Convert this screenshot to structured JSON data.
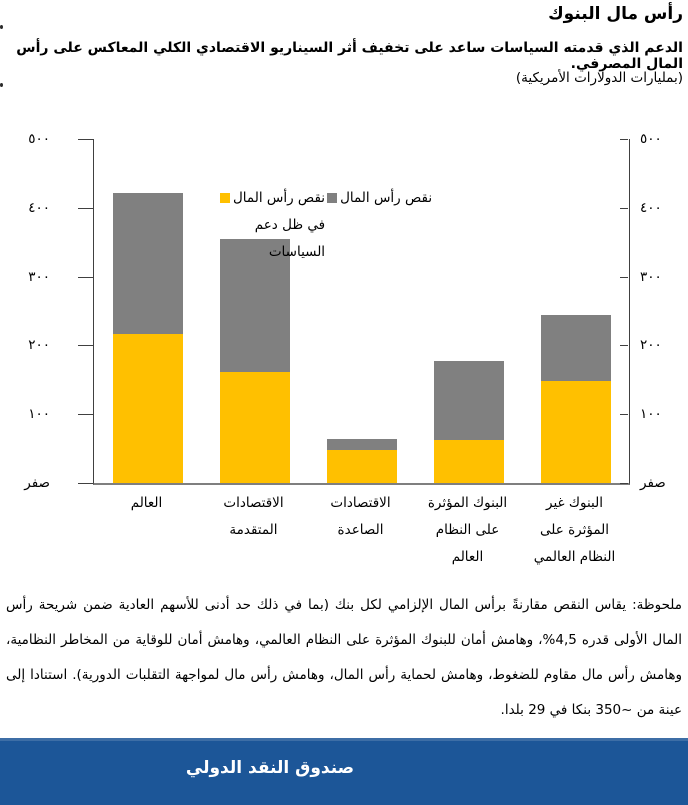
{
  "header": {
    "title": "رأس مال البنوك",
    "subtitle": "الدعم الذي قدمته السياسات ساعد على تخفيف أثر السيناريو الاقتصادي الكلي المعاكس على رأس المال المصرفي.",
    "units": "(بمليارات الدولارات الأمريكية)"
  },
  "chart_data": {
    "type": "bar",
    "stacked": true,
    "direction": "rtl",
    "title": "رأس مال البنوك",
    "ylabel": "بمليارات الدولارات الأمريكية",
    "ylim": [
      0,
      500
    ],
    "grid": false,
    "dual_axis_labels": true,
    "legend_position": "inside-top-center",
    "categories": [
      "العالم",
      "الاقتصادات المتقدمة",
      "الاقتصادات الصاعدة",
      "البنوك المؤثرة على النظام العالم",
      "البنوك غير المؤثرة على النظام العالمي"
    ],
    "category_lines": [
      [
        "العالم"
      ],
      [
        "الاقتصادات",
        "المتقدمة"
      ],
      [
        "الاقتصادات",
        "الصاعدة"
      ],
      [
        "البنوك المؤثرة",
        "على النظام",
        "العالم"
      ],
      [
        "البنوك غير",
        "المؤثرة على",
        "النظام العالمي"
      ]
    ],
    "series": [
      {
        "name": "نقص رأس المال في ظل دعم السياسات",
        "color": "#FFC000",
        "values": [
          217,
          161,
          48,
          63,
          148
        ]
      },
      {
        "name": "نقص رأس المال",
        "color": "#808080",
        "values": [
          205,
          193,
          16,
          115,
          96
        ]
      }
    ],
    "totals": [
      422,
      354,
      64,
      178,
      244
    ],
    "yticks": [
      {
        "value": 0,
        "label": "صفر"
      },
      {
        "value": 100,
        "label": "١٠٠"
      },
      {
        "value": 200,
        "label": "٢٠٠"
      },
      {
        "value": 300,
        "label": "٣٠٠"
      },
      {
        "value": 400,
        "label": "٤٠٠"
      },
      {
        "value": 500,
        "label": "٥٠٠"
      }
    ],
    "legend": [
      {
        "label": "نقص رأس المال",
        "lines": [
          "نقص رأس المال"
        ],
        "color": "#808080"
      },
      {
        "label": "نقص رأس المال في ظل دعم السياسات",
        "lines": [
          "نقص رأس المال",
          "في ظل دعم",
          "السياسات"
        ],
        "color": "#FFC000"
      }
    ]
  },
  "footnote": "ملحوظة: يقاس النقص مقارنةً برأس المال الإلزامي لكل بنك (بما في ذلك حد أدنى للأسهم العادية ضمن شريحة رأس المال الأولى قدره 4,5%، وهامش أمان للبنوك المؤثرة على النظام العالمي، وهامش أمان للوقاية من المخاطر النظامية، وهامش رأس مال مقاوم للضغوط، وهامش لحماية رأس المال، وهامش رأس مال لمواجهة التقلبات الدورية). استنادا إلى عينة من ~350 بنكا في 29 بلدا.",
  "banner": {
    "label": "صندوق النقد الدولي",
    "background": "#1C5698"
  },
  "colors": {
    "support_yellow": "#FFC000",
    "shortfall_gray": "#808080",
    "axis": "#404040",
    "baseline": "#7F7F7F",
    "banner_blue": "#1C5698"
  }
}
